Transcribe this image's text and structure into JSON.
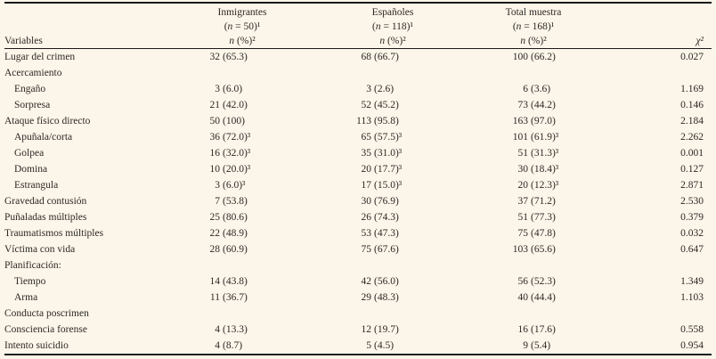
{
  "page": {
    "background": "#fcf5ea",
    "text_color": "#2d2924",
    "rule_color": "#1a1a1a"
  },
  "table": {
    "variables_label": "Variables",
    "chi_header": "χ²",
    "columns": [
      {
        "title": "Inmigrantes",
        "n_pre": "(",
        "n_var": "n",
        "n_rest": " = 50)¹",
        "u_var": "n",
        "u_rest": " (%)²"
      },
      {
        "title": "Españoles",
        "n_pre": "(",
        "n_var": "n",
        "n_rest": " = 118)¹",
        "u_var": "n",
        "u_rest": " (%)²"
      },
      {
        "title": "Total muestra",
        "n_pre": "(",
        "n_var": "n",
        "n_rest": " = 168)¹",
        "u_var": "n",
        "u_rest": " (%)²"
      }
    ],
    "rows": [
      {
        "label": "Lugar del crimen",
        "indent": 0,
        "cells": [
          [
            "32",
            "(65.3)"
          ],
          [
            "68",
            "(66.7)"
          ],
          [
            "100",
            "(66.2)"
          ]
        ],
        "chi": "0.027"
      },
      {
        "label": "Acercamiento",
        "indent": 0,
        "cells": [
          null,
          null,
          null
        ],
        "chi": ""
      },
      {
        "label": "Engaño",
        "indent": 1,
        "cells": [
          [
            "3",
            "(6.0)"
          ],
          [
            "3",
            "(2.6)"
          ],
          [
            "6",
            "(3.6)"
          ]
        ],
        "chi": "1.169"
      },
      {
        "label": "Sorpresa",
        "indent": 1,
        "cells": [
          [
            "21",
            "(42.0)"
          ],
          [
            "52",
            "(45.2)"
          ],
          [
            "73",
            "(44.2)"
          ]
        ],
        "chi": "0.146"
      },
      {
        "label": "Ataque físico directo",
        "indent": 0,
        "cells": [
          [
            "50",
            "(100)"
          ],
          [
            "113",
            "(95.8)"
          ],
          [
            "163",
            "(97.0)"
          ]
        ],
        "chi": "2.184"
      },
      {
        "label": "Apuñala/corta",
        "indent": 1,
        "cells": [
          [
            "36",
            "(72.0)³"
          ],
          [
            "65",
            "(57.5)³"
          ],
          [
            "101",
            "(61.9)³"
          ]
        ],
        "chi": "2.262"
      },
      {
        "label": "Golpea",
        "indent": 1,
        "cells": [
          [
            "16",
            "(32.0)³"
          ],
          [
            "35",
            "(31.0)³"
          ],
          [
            "51",
            "(31.3)³"
          ]
        ],
        "chi": "0.001"
      },
      {
        "label": "Domina",
        "indent": 1,
        "cells": [
          [
            "10",
            "(20.0)³"
          ],
          [
            "20",
            "(17.7)³"
          ],
          [
            "30",
            "(18.4)³"
          ]
        ],
        "chi": "0.127"
      },
      {
        "label": "Estrangula",
        "indent": 1,
        "cells": [
          [
            "3",
            "(6.0)³"
          ],
          [
            "17",
            "(15.0)³"
          ],
          [
            "20",
            "(12.3)³"
          ]
        ],
        "chi": "2.871"
      },
      {
        "label": "Gravedad contusión",
        "indent": 0,
        "cells": [
          [
            "7",
            "(53.8)"
          ],
          [
            "30",
            "(76.9)"
          ],
          [
            "37",
            "(71.2)"
          ]
        ],
        "chi": "2.530"
      },
      {
        "label": "Puñaladas múltiples",
        "indent": 0,
        "cells": [
          [
            "25",
            "(80.6)"
          ],
          [
            "26",
            "(74.3)"
          ],
          [
            "51",
            "(77.3)"
          ]
        ],
        "chi": "0.379"
      },
      {
        "label": "Traumatismos múltiples",
        "indent": 0,
        "cells": [
          [
            "22",
            "(48.9)"
          ],
          [
            "53",
            "(47.3)"
          ],
          [
            "75",
            "(47.8)"
          ]
        ],
        "chi": "0.032"
      },
      {
        "label": "Víctima con vida",
        "indent": 0,
        "cells": [
          [
            "28",
            "(60.9)"
          ],
          [
            "75",
            "(67.6)"
          ],
          [
            "103",
            "(65.6)"
          ]
        ],
        "chi": "0.647"
      },
      {
        "label": "Planificación:",
        "indent": 0,
        "cells": [
          null,
          null,
          null
        ],
        "chi": ""
      },
      {
        "label": "Tiempo",
        "indent": 1,
        "cells": [
          [
            "14",
            "(43.8)"
          ],
          [
            "42",
            "(56.0)"
          ],
          [
            "56",
            "(52.3)"
          ]
        ],
        "chi": "1.349"
      },
      {
        "label": "Arma",
        "indent": 1,
        "cells": [
          [
            "11",
            "(36.7)"
          ],
          [
            "29",
            "(48.3)"
          ],
          [
            "40",
            "(44.4)"
          ]
        ],
        "chi": "1.103"
      },
      {
        "label": "Conducta poscrimen",
        "indent": 0,
        "cells": [
          null,
          null,
          null
        ],
        "chi": ""
      },
      {
        "label": "Consciencia forense",
        "indent": 0,
        "cells": [
          [
            "4",
            "(13.3)"
          ],
          [
            "12",
            "(19.7)"
          ],
          [
            "16",
            "(17.6)"
          ]
        ],
        "chi": "0.558"
      },
      {
        "label": "Intento suicidio",
        "indent": 0,
        "cells": [
          [
            "4",
            "(8.7)"
          ],
          [
            "5",
            "(4.5)"
          ],
          [
            "9",
            "(5.4)"
          ]
        ],
        "chi": "0.954"
      }
    ]
  }
}
